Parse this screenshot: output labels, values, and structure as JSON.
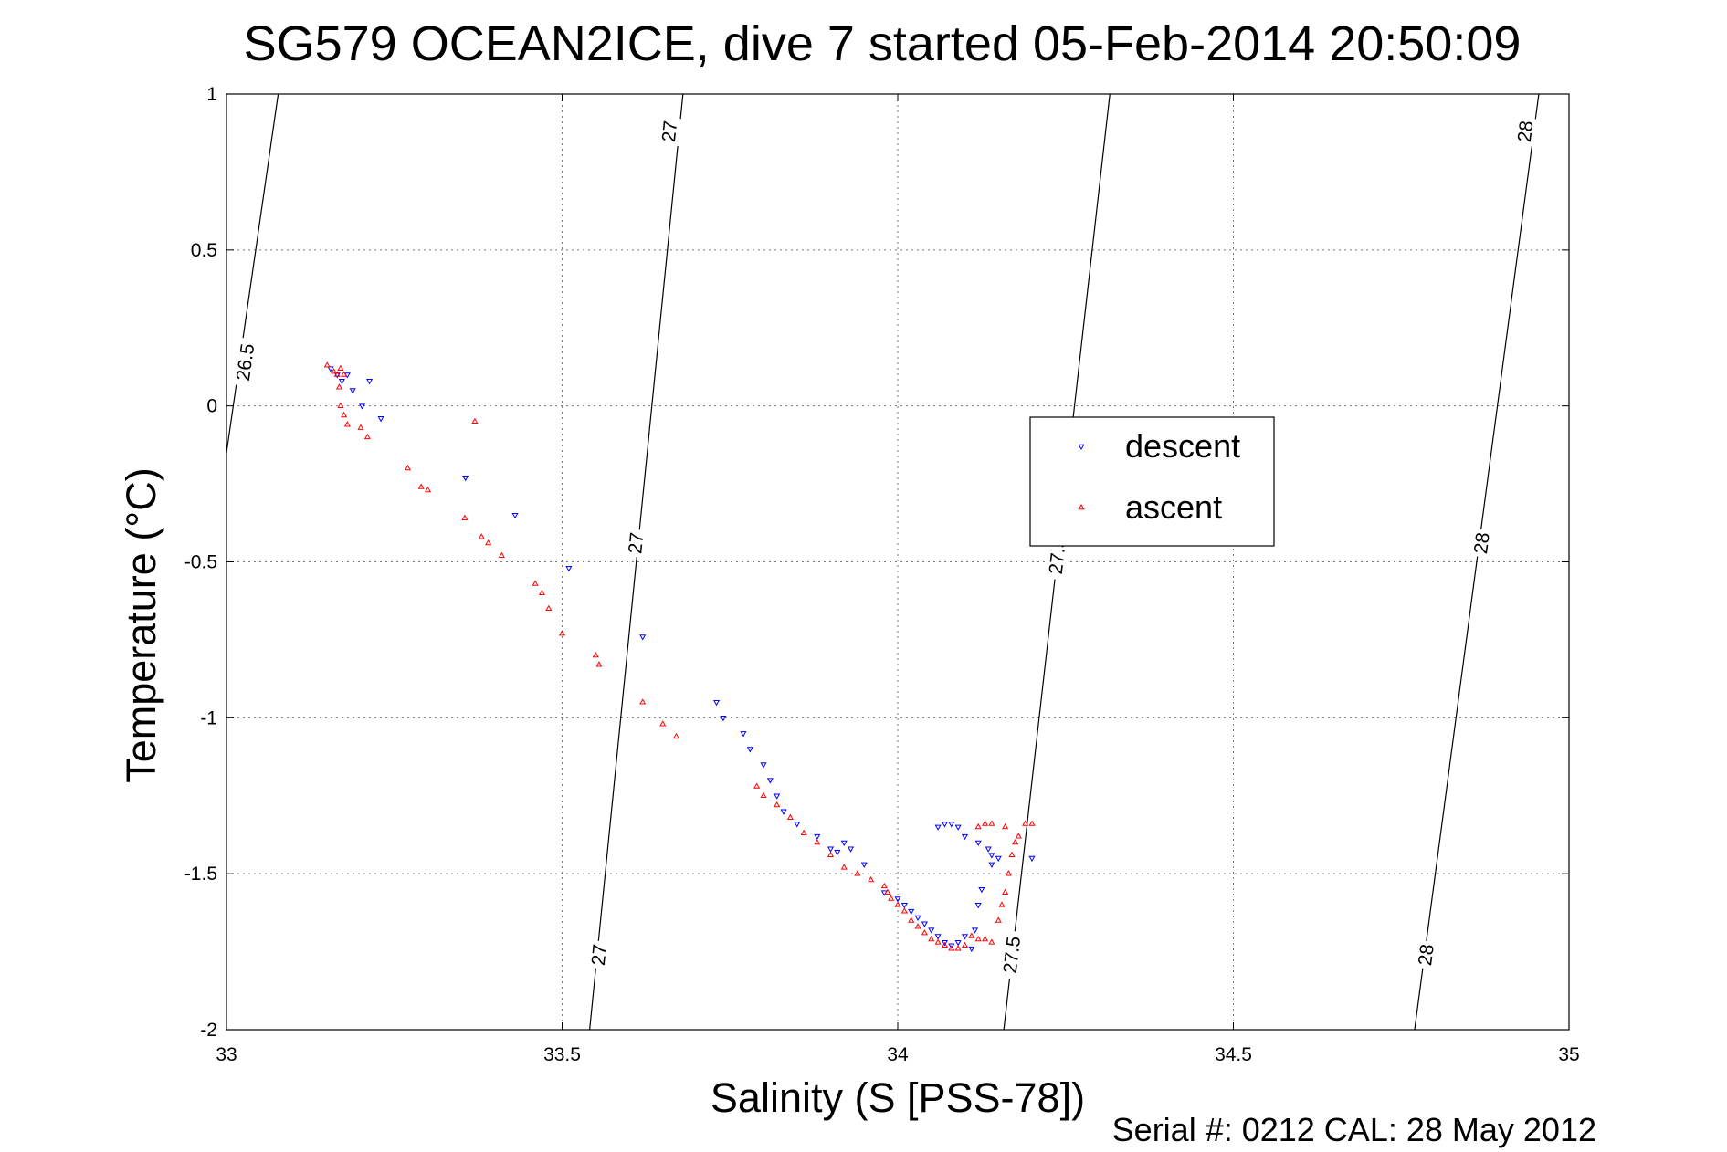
{
  "chart_data": {
    "type": "scatter",
    "title": "SG579 OCEAN2ICE, dive 7 started 05-Feb-2014 20:50:09",
    "xlabel": "Salinity (S [PSS-78])",
    "ylabel": "Temperature (°C)",
    "xlim": [
      33,
      35
    ],
    "ylim": [
      -2,
      1
    ],
    "xticks": [
      33,
      33.5,
      34,
      34.5,
      35
    ],
    "xtick_labels": [
      "33",
      "33.5",
      "34",
      "34.5",
      "35"
    ],
    "yticks": [
      -2,
      -1.5,
      -1,
      -0.5,
      0,
      0.5,
      1
    ],
    "ytick_labels": [
      "-2",
      "-1.5",
      "-1",
      "-0.5",
      "0",
      "0.5",
      "1"
    ],
    "grid": true,
    "legend_position": "right-center",
    "contours": [
      {
        "level": "26.5",
        "points": [
          [
            33.077,
            1.0
          ],
          [
            33.0,
            -0.15
          ]
        ],
        "labels": [
          {
            "text": "26.5",
            "at": [
              33.028,
              0.14
            ]
          }
        ]
      },
      {
        "level": "27",
        "points": [
          [
            33.68,
            1.0
          ],
          [
            33.541,
            -2.0
          ]
        ],
        "labels": [
          {
            "text": "27",
            "at": [
              33.66,
              0.88
            ]
          },
          {
            "text": "27",
            "at": [
              33.61,
              -0.44
            ]
          },
          {
            "text": "27",
            "at": [
              33.555,
              -1.76
            ]
          }
        ]
      },
      {
        "level": "27.5",
        "points": [
          [
            34.316,
            1.0
          ],
          [
            34.158,
            -2.0
          ]
        ],
        "labels": [
          {
            "text": "27.5",
            "at": [
              34.238,
              -0.48
            ]
          },
          {
            "text": "27.5",
            "at": [
              34.17,
              -1.76
            ]
          }
        ]
      },
      {
        "level": "28",
        "points": [
          [
            34.955,
            1.0
          ],
          [
            34.77,
            -2.0
          ]
        ],
        "labels": [
          {
            "text": "28",
            "at": [
              34.935,
              0.88
            ]
          },
          {
            "text": "28",
            "at": [
              34.87,
              -0.44
            ]
          },
          {
            "text": "28",
            "at": [
              34.787,
              -1.76
            ]
          }
        ]
      }
    ],
    "series": [
      {
        "name": "descent",
        "color": "#0000ff",
        "marker": "triangle-down",
        "points": [
          [
            33.155,
            0.12
          ],
          [
            33.165,
            0.1
          ],
          [
            33.172,
            0.08
          ],
          [
            33.18,
            0.1
          ],
          [
            33.188,
            0.05
          ],
          [
            33.202,
            0.0
          ],
          [
            33.213,
            0.08
          ],
          [
            33.23,
            -0.04
          ],
          [
            33.356,
            -0.23
          ],
          [
            33.43,
            -0.35
          ],
          [
            33.51,
            -0.52
          ],
          [
            33.62,
            -0.74
          ],
          [
            33.73,
            -0.95
          ],
          [
            33.74,
            -1.0
          ],
          [
            33.77,
            -1.05
          ],
          [
            33.78,
            -1.1
          ],
          [
            33.8,
            -1.15
          ],
          [
            33.81,
            -1.2
          ],
          [
            33.82,
            -1.25
          ],
          [
            33.83,
            -1.3
          ],
          [
            33.85,
            -1.34
          ],
          [
            33.88,
            -1.38
          ],
          [
            33.9,
            -1.42
          ],
          [
            33.91,
            -1.43
          ],
          [
            33.92,
            -1.4
          ],
          [
            33.93,
            -1.42
          ],
          [
            33.95,
            -1.47
          ],
          [
            33.98,
            -1.56
          ],
          [
            34.0,
            -1.58
          ],
          [
            34.01,
            -1.6
          ],
          [
            34.02,
            -1.62
          ],
          [
            34.03,
            -1.64
          ],
          [
            34.04,
            -1.66
          ],
          [
            34.05,
            -1.68
          ],
          [
            34.06,
            -1.7
          ],
          [
            34.07,
            -1.72
          ],
          [
            34.08,
            -1.73
          ],
          [
            34.09,
            -1.72
          ],
          [
            34.1,
            -1.7
          ],
          [
            34.11,
            -1.74
          ],
          [
            34.115,
            -1.68
          ],
          [
            34.12,
            -1.6
          ],
          [
            34.125,
            -1.55
          ],
          [
            34.14,
            -1.47
          ],
          [
            34.14,
            -1.44
          ],
          [
            34.135,
            -1.42
          ],
          [
            34.12,
            -1.4
          ],
          [
            34.1,
            -1.38
          ],
          [
            34.09,
            -1.35
          ],
          [
            34.08,
            -1.34
          ],
          [
            34.07,
            -1.34
          ],
          [
            34.06,
            -1.35
          ],
          [
            34.2,
            -1.45
          ],
          [
            34.15,
            -1.45
          ]
        ]
      },
      {
        "name": "ascent",
        "color": "#ff0000",
        "marker": "triangle-up",
        "points": [
          [
            33.15,
            0.13
          ],
          [
            33.16,
            0.11
          ],
          [
            33.165,
            0.1
          ],
          [
            33.17,
            0.12
          ],
          [
            33.175,
            0.1
          ],
          [
            33.168,
            0.06
          ],
          [
            33.17,
            0.0
          ],
          [
            33.175,
            -0.03
          ],
          [
            33.18,
            -0.06
          ],
          [
            33.2,
            -0.07
          ],
          [
            33.21,
            -0.1
          ],
          [
            33.27,
            -0.2
          ],
          [
            33.29,
            -0.26
          ],
          [
            33.3,
            -0.27
          ],
          [
            33.355,
            -0.36
          ],
          [
            33.37,
            -0.05
          ],
          [
            33.38,
            -0.42
          ],
          [
            33.39,
            -0.44
          ],
          [
            33.41,
            -0.48
          ],
          [
            33.46,
            -0.57
          ],
          [
            33.47,
            -0.6
          ],
          [
            33.48,
            -0.65
          ],
          [
            33.5,
            -0.73
          ],
          [
            33.55,
            -0.8
          ],
          [
            33.555,
            -0.83
          ],
          [
            33.62,
            -0.95
          ],
          [
            33.65,
            -1.02
          ],
          [
            33.67,
            -1.06
          ],
          [
            33.79,
            -1.22
          ],
          [
            33.8,
            -1.25
          ],
          [
            33.82,
            -1.28
          ],
          [
            33.84,
            -1.32
          ],
          [
            33.86,
            -1.37
          ],
          [
            33.88,
            -1.4
          ],
          [
            33.9,
            -1.44
          ],
          [
            33.92,
            -1.48
          ],
          [
            33.94,
            -1.5
          ],
          [
            33.96,
            -1.52
          ],
          [
            33.98,
            -1.54
          ],
          [
            33.985,
            -1.56
          ],
          [
            33.99,
            -1.58
          ],
          [
            34.0,
            -1.6
          ],
          [
            34.01,
            -1.62
          ],
          [
            34.02,
            -1.65
          ],
          [
            34.03,
            -1.67
          ],
          [
            34.04,
            -1.69
          ],
          [
            34.05,
            -1.71
          ],
          [
            34.06,
            -1.72
          ],
          [
            34.07,
            -1.73
          ],
          [
            34.08,
            -1.74
          ],
          [
            34.09,
            -1.74
          ],
          [
            34.1,
            -1.73
          ],
          [
            34.11,
            -1.7
          ],
          [
            34.12,
            -1.71
          ],
          [
            34.13,
            -1.71
          ],
          [
            34.14,
            -1.72
          ],
          [
            34.15,
            -1.65
          ],
          [
            34.155,
            -1.6
          ],
          [
            34.16,
            -1.56
          ],
          [
            34.165,
            -1.5
          ],
          [
            34.17,
            -1.44
          ],
          [
            34.175,
            -1.4
          ],
          [
            34.18,
            -1.38
          ],
          [
            34.16,
            -1.35
          ],
          [
            34.14,
            -1.34
          ],
          [
            34.13,
            -1.34
          ],
          [
            34.12,
            -1.35
          ],
          [
            34.19,
            -1.34
          ],
          [
            34.2,
            -1.34
          ]
        ]
      }
    ]
  },
  "footer": {
    "serial": "Serial #: 0212  CAL: 28 May 2012"
  }
}
